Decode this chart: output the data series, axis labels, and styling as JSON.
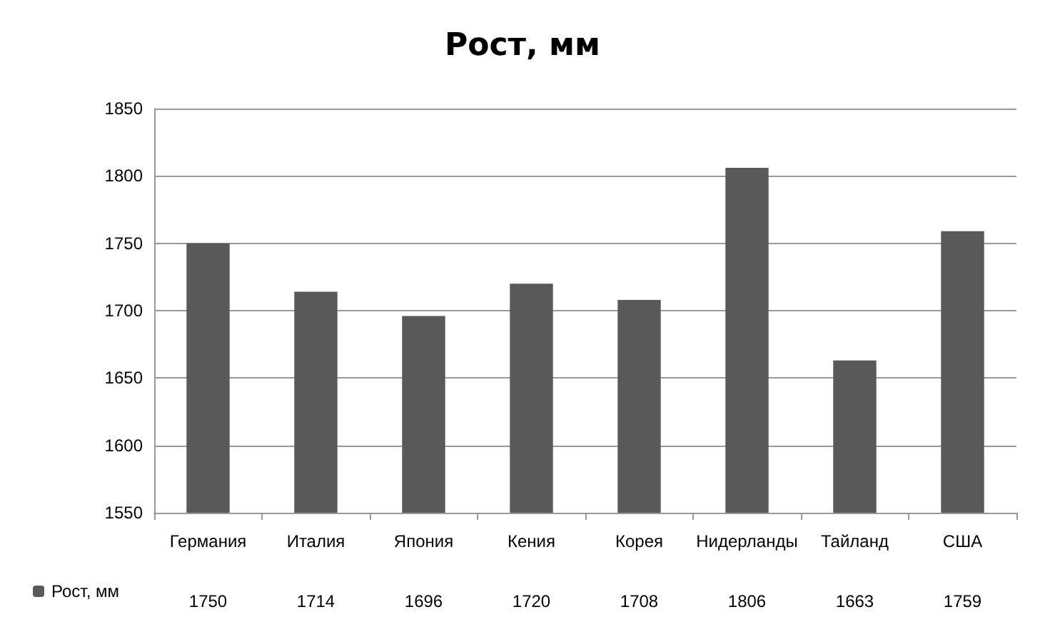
{
  "chart_data": {
    "type": "bar",
    "title": "Рост, мм",
    "categories": [
      "Германия",
      "Италия",
      "Япония",
      "Кения",
      "Корея",
      "Нидерланды",
      "Тайланд",
      "США"
    ],
    "series": [
      {
        "name": "Рост, мм",
        "color": "#595959",
        "values": [
          1750,
          1714,
          1696,
          1720,
          1708,
          1806,
          1663,
          1759
        ]
      }
    ],
    "ylim": [
      1550,
      1850
    ],
    "yticks": [
      1550,
      1600,
      1650,
      1700,
      1750,
      1800,
      1850
    ],
    "grid": "y",
    "legend": "bottom left",
    "data_labels": true
  }
}
